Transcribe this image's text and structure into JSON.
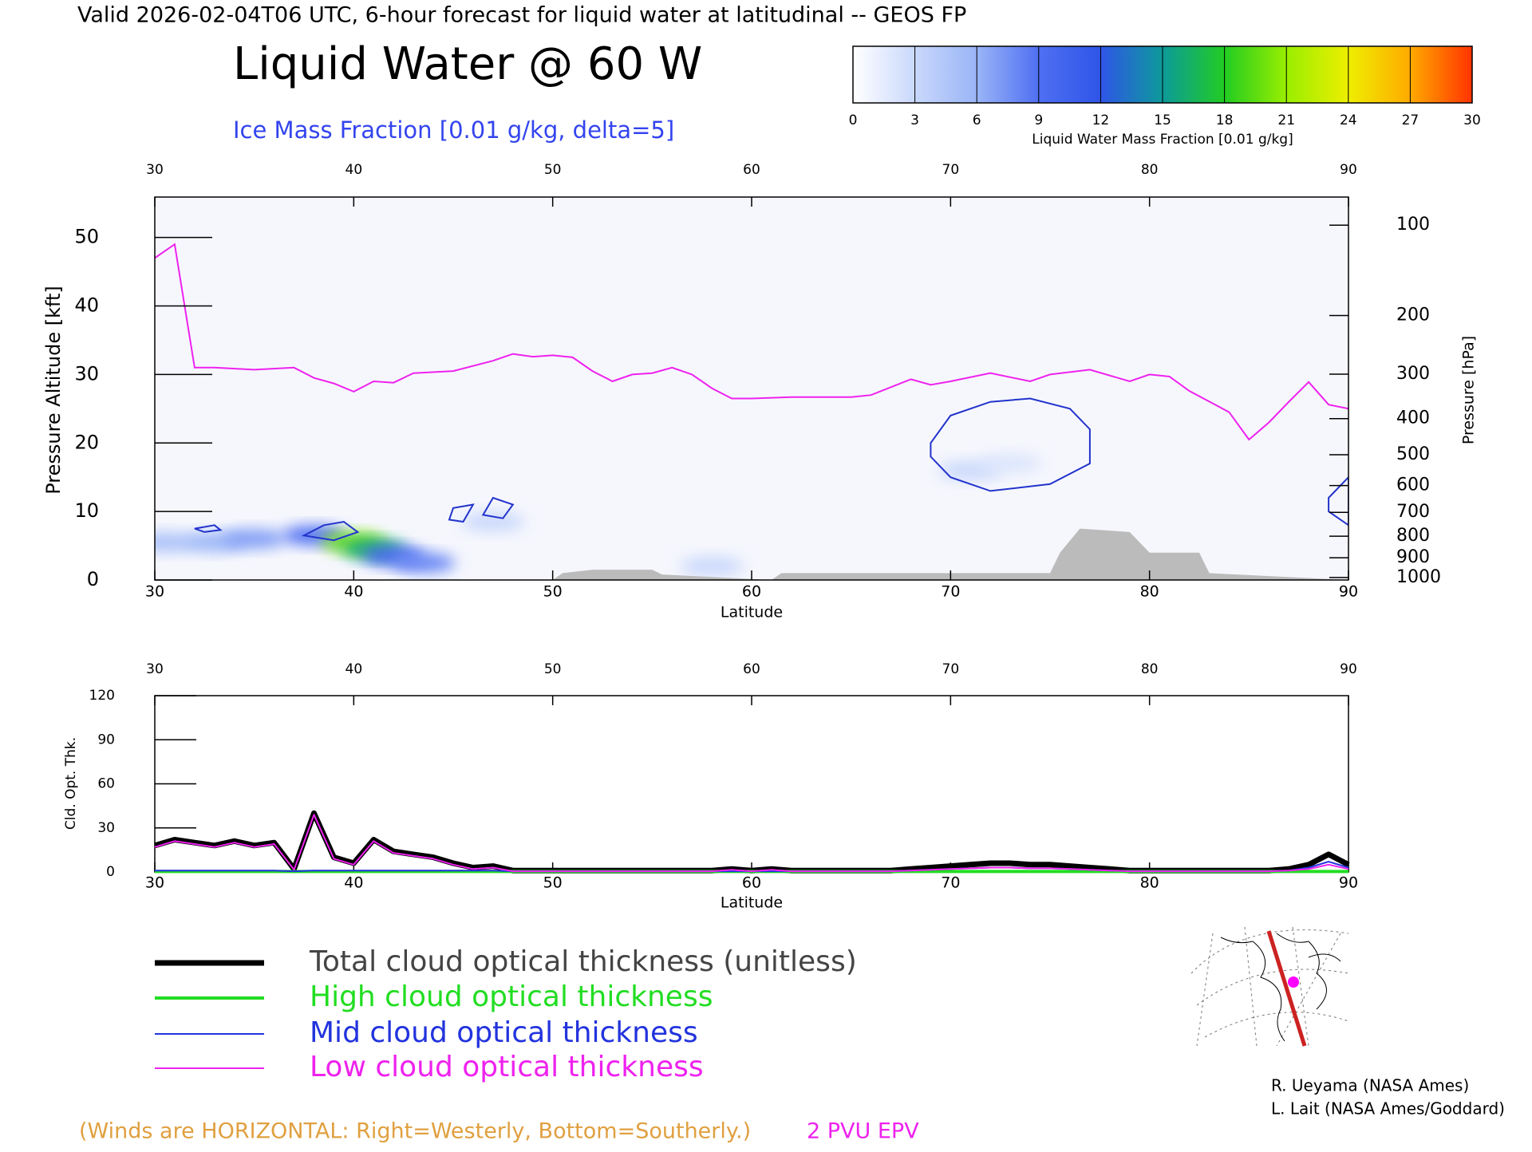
{
  "header": "Valid 2026-02-04T06 UTC, 6-hour forecast for liquid water at latitudinal -- GEOS FP",
  "credits": [
    "R. Ueyama (NASA Ames)",
    "L. Lait (NASA Ames/Goddard)"
  ],
  "chart_data": [
    {
      "type": "cross-section",
      "title": "Liquid Water @ 60 W",
      "subtitle": "Ice Mass Fraction [0.01 g/kg, delta=5]",
      "xlabel": "Latitude",
      "ylabel": "Pressure Altitude [kft]",
      "y2label": "Pressure [hPa]",
      "xlim": [
        30,
        90
      ],
      "xticks": [
        30,
        40,
        50,
        60,
        70,
        80,
        90
      ],
      "ylim": [
        0,
        55.9
      ],
      "yticks": [
        0,
        10,
        20,
        30,
        40,
        50
      ],
      "y2scale": "pressure",
      "y2lim": [
        1013.25,
        79
      ],
      "y2ticks": [
        100,
        200,
        300,
        400,
        500,
        600,
        700,
        800,
        900,
        1000
      ],
      "colorbar": {
        "label": "Liquid Water Mass Fraction [0.01 g/kg]",
        "lim": [
          0,
          30
        ],
        "ticks": [
          0,
          3,
          6,
          9,
          12,
          15,
          18,
          21,
          24,
          27,
          30
        ],
        "colors": [
          "#ffffff",
          "#c9d8fb",
          "#9ab5f7",
          "#4f6ff2",
          "#2f55e8",
          "#0d9a9a",
          "#22cc22",
          "#99ee00",
          "#eeee00",
          "#ffaa00",
          "#ff3300"
        ]
      },
      "field": {
        "lat": [
          30.5,
          33,
          35,
          38,
          40,
          41,
          42,
          43.5,
          47,
          71,
          73,
          58
        ],
        "alt": [
          5.5,
          5.5,
          6,
          6.5,
          5.5,
          4.5,
          3.5,
          2.5,
          8.5,
          16,
          17,
          2
        ],
        "values": [
          5,
          6,
          7,
          9,
          20,
          16,
          10,
          8,
          3,
          3,
          2,
          3
        ]
      },
      "contours": [
        {
          "color": "#2233cc",
          "lat": [
            69,
            70,
            72,
            74,
            76,
            77,
            77,
            75,
            72,
            70,
            69
          ],
          "alt": [
            20,
            24,
            26,
            26.5,
            25,
            22,
            17,
            14,
            13,
            15,
            18
          ]
        },
        {
          "color": "#2233cc",
          "lat": [
            37.5,
            38.5,
            39.5,
            40.2,
            39
          ],
          "alt": [
            6.5,
            8,
            8.5,
            7,
            5.8
          ]
        },
        {
          "color": "#2233cc",
          "lat": [
            44.8,
            45,
            46,
            45.5
          ],
          "alt": [
            8.8,
            10.5,
            11,
            8.5
          ]
        },
        {
          "color": "#2233cc",
          "lat": [
            46.5,
            47,
            48,
            47.5
          ],
          "alt": [
            9.5,
            12,
            11,
            9
          ]
        },
        {
          "color": "#2233cc",
          "lat": [
            32,
            33,
            33.3,
            32.5
          ],
          "alt": [
            7.5,
            8,
            7.3,
            7
          ]
        },
        {
          "color": "#2233cc",
          "lat": [
            89,
            90,
            90,
            89
          ],
          "alt": [
            12,
            15,
            8,
            10
          ]
        }
      ],
      "epv": {
        "name": "2 PVU EPV",
        "color": "#ee22ee",
        "lat": [
          30,
          31,
          32,
          33,
          35,
          37,
          38,
          39,
          40,
          41,
          42,
          43,
          45,
          47,
          48,
          49,
          50,
          51,
          52,
          53,
          54,
          55,
          56,
          57,
          58,
          59,
          60,
          62,
          65,
          66,
          68,
          69,
          70,
          72,
          74,
          75,
          77,
          79,
          80,
          81,
          82,
          84,
          85,
          86,
          87,
          88,
          89,
          90
        ],
        "alt": [
          47,
          49,
          31,
          31,
          30.7,
          31,
          29.5,
          28.7,
          27.5,
          29,
          28.8,
          30.2,
          30.5,
          32,
          33,
          32.6,
          32.8,
          32.5,
          30.5,
          29,
          30,
          30.2,
          31,
          30,
          28,
          26.5,
          26.5,
          26.7,
          26.7,
          27,
          29.3,
          28.5,
          29,
          30.2,
          29,
          30,
          30.7,
          29,
          30,
          29.7,
          27.6,
          24.5,
          20.5,
          23,
          26,
          28.9,
          25.6,
          25
        ]
      },
      "terrain": {
        "color": "#bbbbbb",
        "lat": [
          50,
          50.5,
          52,
          55,
          55.5,
          61,
          61.5,
          75,
          75.5,
          76.5,
          79,
          80,
          82.5,
          83,
          90
        ],
        "alt": [
          0,
          1,
          1.5,
          1.5,
          0.8,
          0,
          1,
          1,
          4,
          7.5,
          7,
          4,
          4,
          1,
          0
        ]
      },
      "wind_note": "(Winds are HORIZONTAL: Right=Westerly, Bottom=Southerly.)"
    },
    {
      "type": "line",
      "xlabel": "Latitude",
      "ylabel": "Cld. Opt. Thk.",
      "xlim": [
        30,
        90
      ],
      "xticks": [
        30,
        40,
        50,
        60,
        70,
        80,
        90
      ],
      "ylim": [
        0,
        120
      ],
      "yticks": [
        0,
        30,
        60,
        90,
        120
      ],
      "x": [
        30,
        31,
        32,
        33,
        34,
        35,
        36,
        37,
        38,
        39,
        40,
        41,
        42,
        43,
        44,
        45,
        46,
        47,
        48,
        49,
        50,
        51,
        52,
        53,
        54,
        55,
        56,
        57,
        58,
        59,
        60,
        61,
        62,
        63,
        64,
        65,
        66,
        67,
        68,
        69,
        70,
        71,
        72,
        73,
        74,
        75,
        76,
        77,
        78,
        79,
        80,
        81,
        82,
        83,
        84,
        85,
        86,
        87,
        88,
        89,
        90
      ],
      "series": [
        {
          "name": "Total cloud optical thickness (unitless)",
          "color": "#000000",
          "values": [
            18,
            22,
            20,
            18,
            21,
            18,
            20,
            2,
            40,
            10,
            6,
            22,
            14,
            12,
            10,
            6,
            3,
            4,
            1,
            1,
            1,
            1,
            1,
            1,
            1,
            1,
            1,
            1,
            1,
            2,
            1,
            2,
            1,
            1,
            1,
            1,
            1,
            1,
            2,
            3,
            4,
            5,
            6,
            6,
            5,
            5,
            4,
            3,
            2,
            1,
            1,
            1,
            1,
            1,
            1,
            1,
            1,
            2,
            5,
            12,
            5
          ]
        },
        {
          "name": "High cloud optical thickness",
          "color": "#22dd22",
          "values": [
            0.3,
            0.3,
            0.3,
            0.3,
            0.3,
            0.3,
            0.3,
            0.3,
            0.3,
            0.3,
            0.3,
            0.3,
            0.3,
            0.3,
            0.3,
            0.3,
            0.3,
            0.3,
            0.3,
            0.3,
            0.3,
            0.3,
            0.3,
            0.3,
            0.3,
            0.3,
            0.3,
            0.3,
            0.3,
            0.3,
            0.3,
            0.3,
            0.3,
            0.3,
            0.3,
            0.3,
            0.3,
            0.3,
            0.3,
            0.3,
            0.3,
            0.3,
            0.3,
            0.3,
            0.3,
            0.3,
            0.3,
            0.3,
            0.3,
            0.3,
            0.3,
            0.3,
            0.3,
            0.3,
            0.3,
            0.3,
            0.3,
            0.3,
            0.3,
            0.3,
            0.3
          ]
        },
        {
          "name": "Mid cloud optical thickness",
          "color": "#2233dd",
          "values": [
            1,
            1,
            1,
            1,
            1,
            1,
            1,
            0.5,
            1,
            1,
            1,
            1,
            1,
            1,
            1,
            1,
            1,
            1,
            0.5,
            0.5,
            0.5,
            0.5,
            0.5,
            0.5,
            0.5,
            0.5,
            0.5,
            0.5,
            0.5,
            0.5,
            0.5,
            0.5,
            0.5,
            0.5,
            0.5,
            0.5,
            0.5,
            0.5,
            1,
            1.5,
            2,
            2.5,
            3,
            3,
            2.5,
            2.5,
            2,
            1.5,
            1,
            0.5,
            0.5,
            0.5,
            0.5,
            0.5,
            0.5,
            0.5,
            0.5,
            1,
            3,
            7,
            3
          ]
        },
        {
          "name": "Low cloud optical thickness",
          "color": "#ee22ee",
          "values": [
            17,
            21,
            19,
            17,
            20,
            17,
            19,
            1.5,
            39,
            9,
            5,
            21,
            13,
            11,
            9,
            5,
            2,
            3,
            0.5,
            0.5,
            0.5,
            0.5,
            0.5,
            0.5,
            0.5,
            0.5,
            0.5,
            0.5,
            0.5,
            1.5,
            0.5,
            1.5,
            0.5,
            0.5,
            0.5,
            0.5,
            0.5,
            0.5,
            1,
            1.5,
            2,
            2.5,
            3,
            3,
            2.5,
            2.5,
            2,
            1.5,
            1,
            0.5,
            0.5,
            0.5,
            0.5,
            0.5,
            0.5,
            0.5,
            0.5,
            1,
            2,
            5,
            2
          ]
        }
      ]
    }
  ]
}
